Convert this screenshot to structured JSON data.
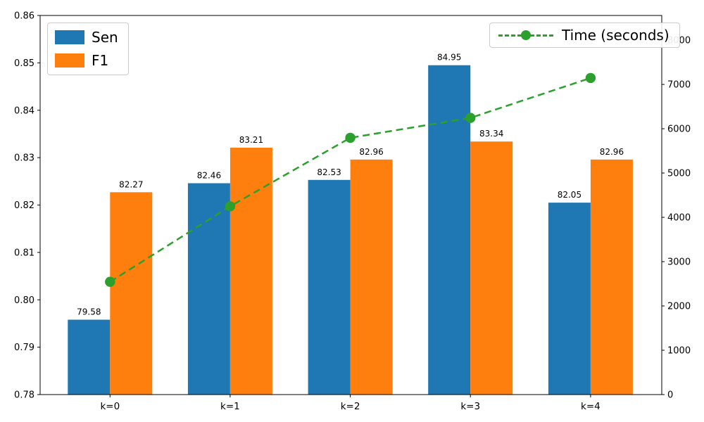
{
  "chart_data": {
    "type": "bar",
    "title": "",
    "xlabel": "",
    "ylabel": "",
    "categories": [
      "k=0",
      "k=1",
      "k=2",
      "k=3",
      "k=4"
    ],
    "bar_series": [
      {
        "name": "Sen",
        "color": "#1f77b4",
        "values": [
          0.7958,
          0.8246,
          0.8253,
          0.8495,
          0.8205
        ],
        "labels": [
          "79.58",
          "82.46",
          "82.53",
          "84.95",
          "82.05"
        ]
      },
      {
        "name": "F1",
        "color": "#ff7f0e",
        "values": [
          0.8227,
          0.8321,
          0.8296,
          0.8334,
          0.8296
        ],
        "labels": [
          "82.27",
          "83.21",
          "82.96",
          "83.34",
          "82.96"
        ]
      }
    ],
    "line_series": {
      "name": "Time (seconds)",
      "color": "#2ca02c",
      "style": "dashed",
      "marker": "circle",
      "axis": "right",
      "values": [
        2545,
        4250,
        5795,
        6245,
        7145
      ]
    },
    "left_axis": {
      "min": 0.78,
      "max": 0.86,
      "tick_step": 0.01,
      "ticks": [
        "0.78",
        "0.79",
        "0.80",
        "0.81",
        "0.82",
        "0.83",
        "0.84",
        "0.85",
        "0.86"
      ]
    },
    "right_axis": {
      "min": 0,
      "max": 8556,
      "tick_step": 1000,
      "ticks": [
        "0",
        "1000",
        "2000",
        "3000",
        "4000",
        "5000",
        "6000",
        "7000",
        "8000"
      ]
    },
    "legend": {
      "bars_position": "top-left",
      "line_position": "top-right"
    },
    "grid": false
  }
}
